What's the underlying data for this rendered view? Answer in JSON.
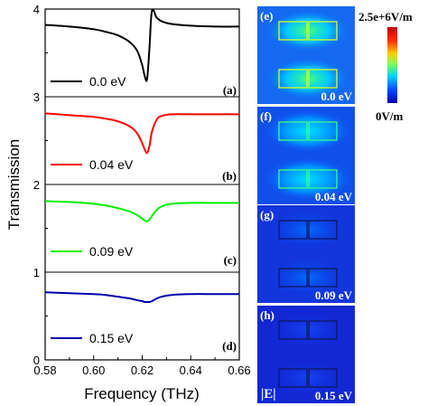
{
  "chart_data": {
    "type": "line",
    "title": "",
    "xlabel": "Frequency (THz)",
    "ylabel": "Transmission",
    "xlim": [
      0.58,
      0.66
    ],
    "ylim": [
      0,
      4
    ],
    "x_ticks": [
      "0.58",
      "0.60",
      "0.62",
      "0.64",
      "0.66"
    ],
    "y_ticks": [
      "0",
      "1",
      "2",
      "3",
      "4"
    ],
    "grid": false,
    "panels": [
      {
        "label": "(a)",
        "legend": "0.0 eV",
        "color": "#000000",
        "x": [
          0.58,
          0.59,
          0.6,
          0.605,
          0.61,
          0.615,
          0.618,
          0.62,
          0.621,
          0.622,
          0.623,
          0.624,
          0.626,
          0.628,
          0.632,
          0.64,
          0.65,
          0.66
        ],
        "values": [
          3.82,
          3.8,
          3.77,
          3.74,
          3.7,
          3.62,
          3.52,
          3.36,
          3.24,
          3.2,
          3.56,
          3.98,
          3.9,
          3.86,
          3.83,
          3.81,
          3.8,
          3.8
        ]
      },
      {
        "label": "(b)",
        "legend": "0.04 eV",
        "color": "#ff0000",
        "x": [
          0.58,
          0.59,
          0.6,
          0.605,
          0.61,
          0.615,
          0.618,
          0.62,
          0.621,
          0.622,
          0.623,
          0.624,
          0.626,
          0.628,
          0.632,
          0.64,
          0.65,
          0.66
        ],
        "values": [
          2.81,
          2.79,
          2.77,
          2.75,
          2.72,
          2.66,
          2.58,
          2.47,
          2.4,
          2.36,
          2.44,
          2.6,
          2.74,
          2.78,
          2.8,
          2.8,
          2.8,
          2.8
        ]
      },
      {
        "label": "(c)",
        "legend": "0.09 eV",
        "color": "#00ee00",
        "x": [
          0.58,
          0.59,
          0.6,
          0.605,
          0.61,
          0.615,
          0.618,
          0.62,
          0.621,
          0.622,
          0.623,
          0.624,
          0.626,
          0.628,
          0.632,
          0.64,
          0.65,
          0.66
        ],
        "values": [
          1.81,
          1.8,
          1.78,
          1.76,
          1.73,
          1.69,
          1.65,
          1.61,
          1.59,
          1.58,
          1.6,
          1.64,
          1.71,
          1.75,
          1.78,
          1.79,
          1.79,
          1.79
        ]
      },
      {
        "label": "(d)",
        "legend": "0.15 eV",
        "color": "#0000aa",
        "x": [
          0.58,
          0.59,
          0.6,
          0.605,
          0.61,
          0.615,
          0.618,
          0.62,
          0.621,
          0.622,
          0.623,
          0.624,
          0.626,
          0.628,
          0.632,
          0.64,
          0.65,
          0.66
        ],
        "values": [
          0.77,
          0.76,
          0.75,
          0.74,
          0.72,
          0.7,
          0.68,
          0.67,
          0.66,
          0.66,
          0.66,
          0.67,
          0.7,
          0.72,
          0.74,
          0.75,
          0.75,
          0.75
        ]
      }
    ]
  },
  "field_maps": [
    {
      "label": "(e)",
      "caption": "0.0 eV",
      "intensity": "high"
    },
    {
      "label": "(f)",
      "caption": "0.04 eV",
      "intensity": "medium"
    },
    {
      "label": "(g)",
      "caption": "0.09 eV",
      "intensity": "low"
    },
    {
      "label": "(h)",
      "caption": "0.15 eV",
      "intensity": "lowest"
    }
  ],
  "field_symbol": "|E|",
  "colorbar": {
    "max_label": "2.5e+6V/m",
    "min_label": "0V/m"
  }
}
